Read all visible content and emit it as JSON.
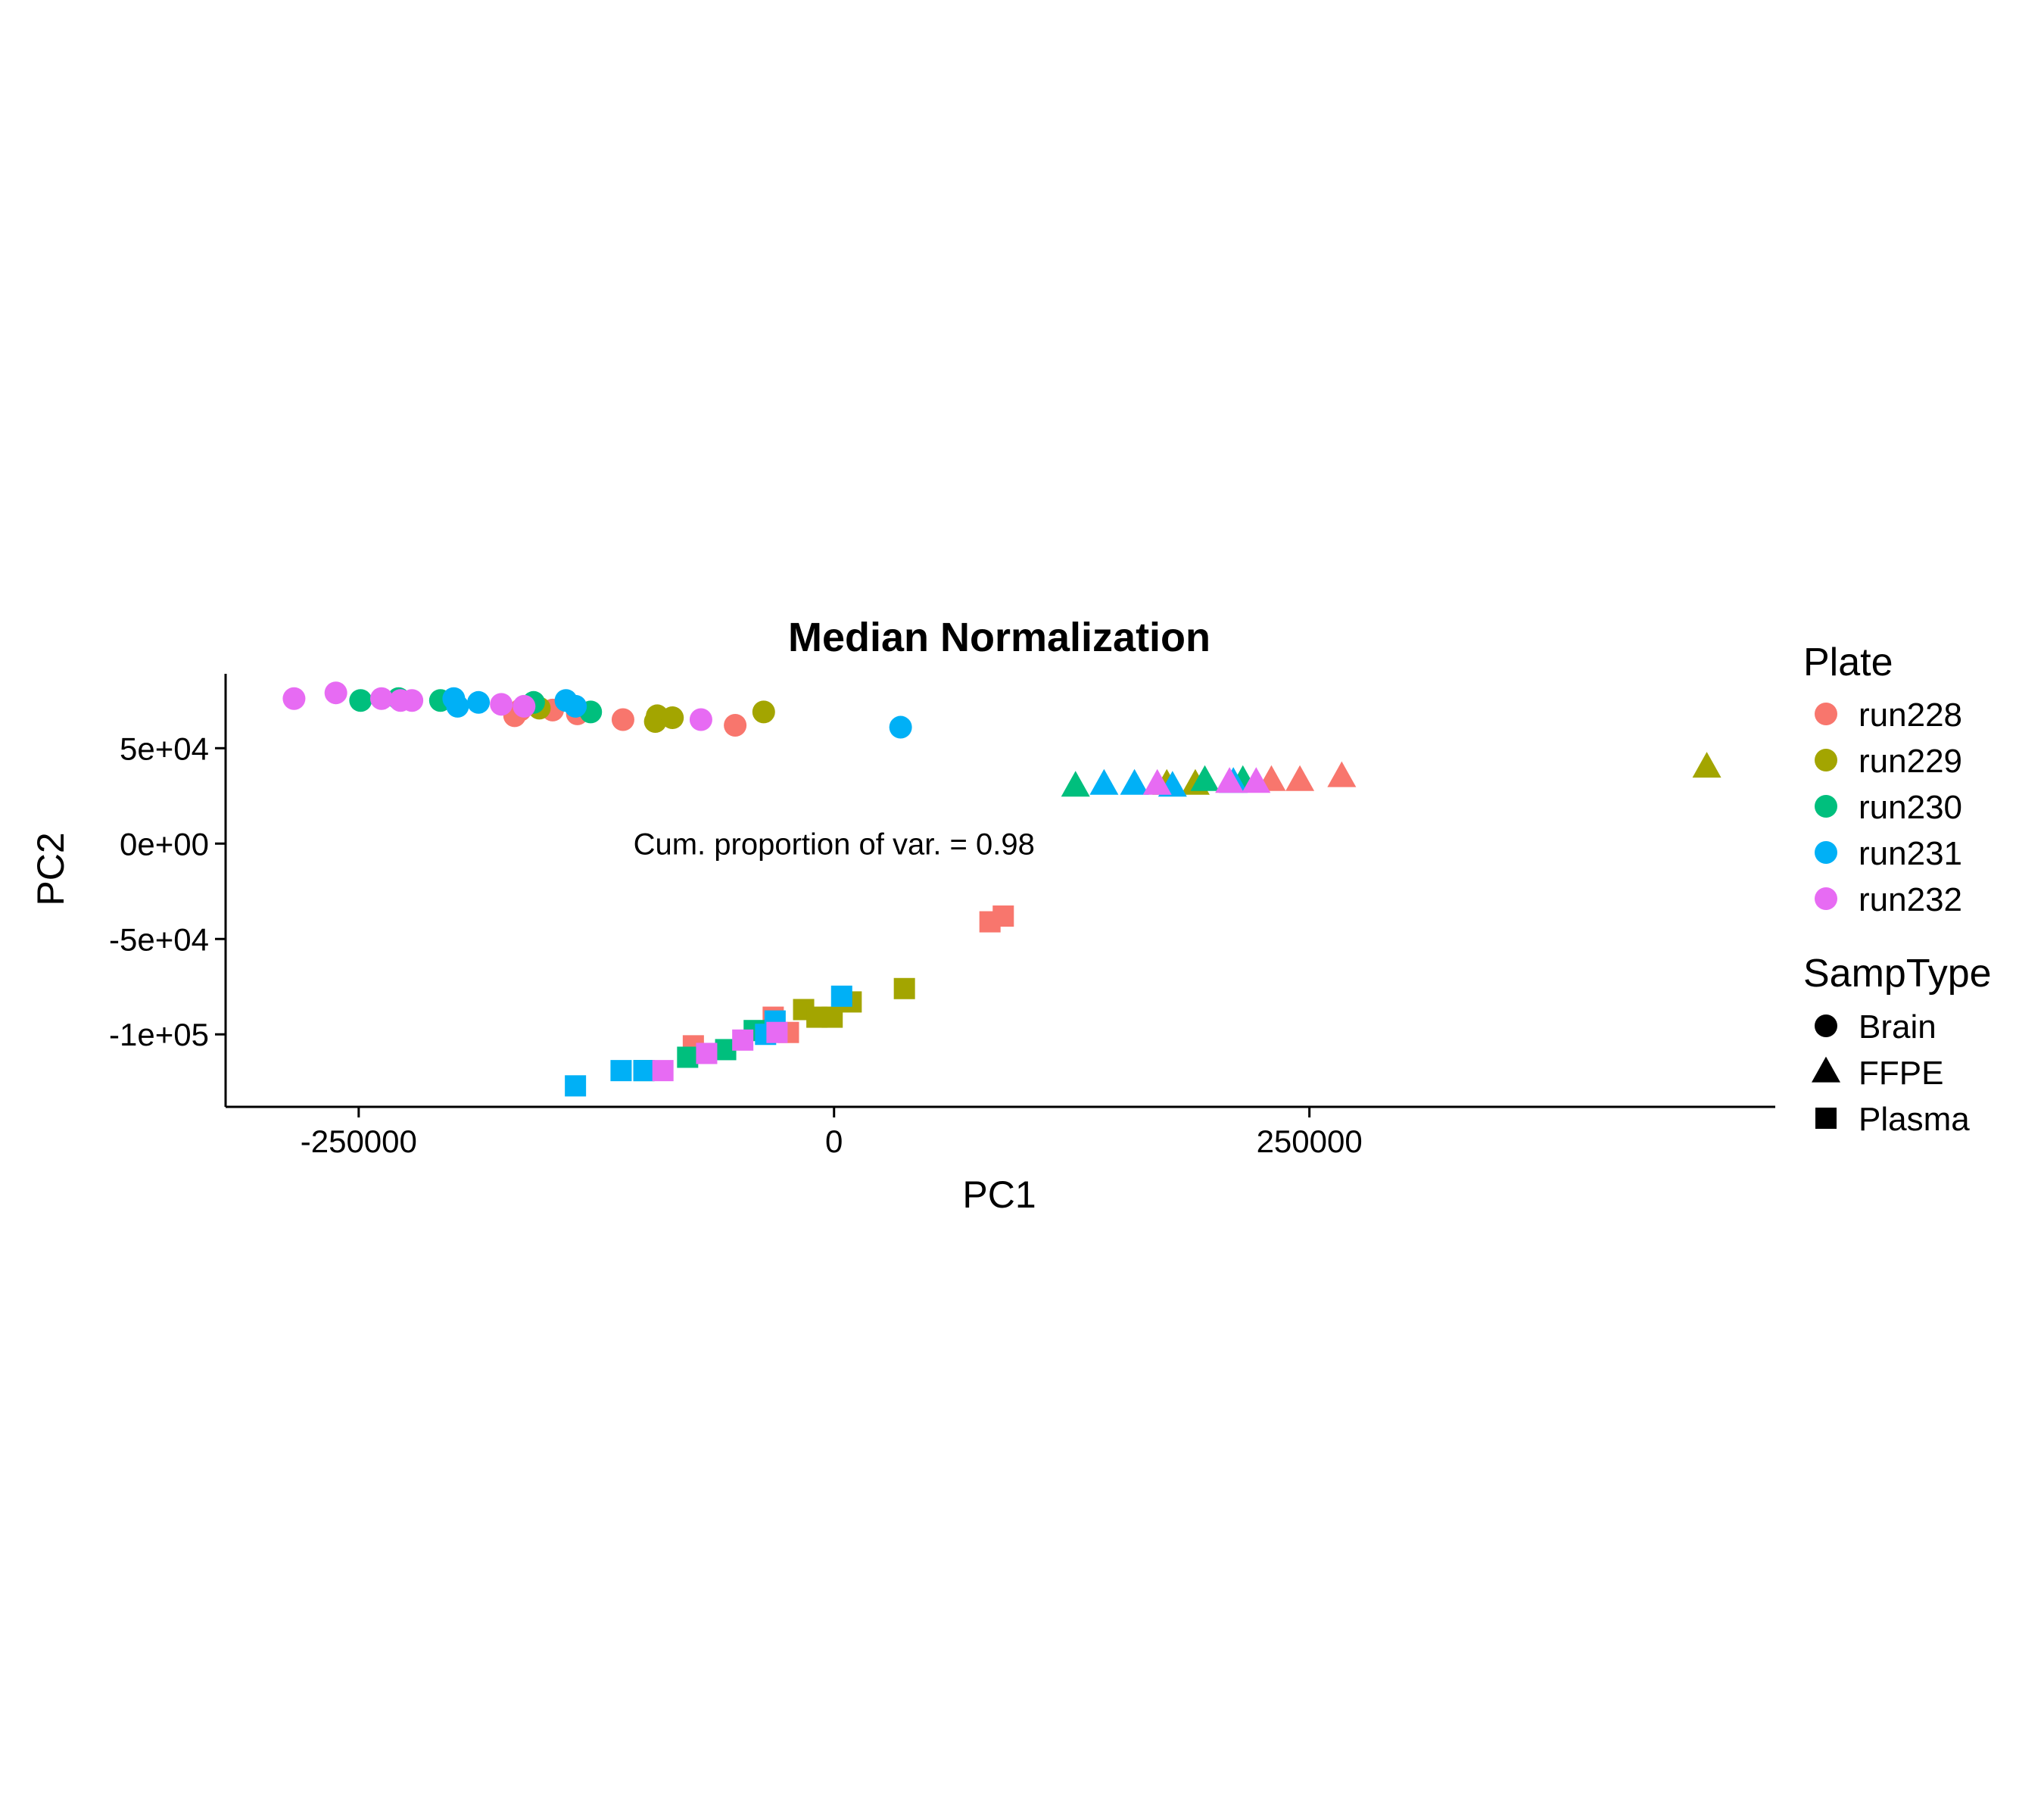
{
  "chart_data": {
    "type": "scatter",
    "title": "Median Normalization",
    "xlabel": "PC1",
    "ylabel": "PC2",
    "xlim": [
      -320000,
      495000
    ],
    "ylim": [
      -138000,
      89000
    ],
    "x_ticks": [
      {
        "value": -250000,
        "label": "-250000"
      },
      {
        "value": 0,
        "label": "0"
      },
      {
        "value": 250000,
        "label": "250000"
      }
    ],
    "y_ticks": [
      {
        "value": 50000,
        "label": "5e+04"
      },
      {
        "value": 0,
        "label": "0e+00"
      },
      {
        "value": -50000,
        "label": "-5e+04"
      },
      {
        "value": -100000,
        "label": "-1e+05"
      }
    ],
    "grid": false,
    "annotation": {
      "text": "Cum. proportion of var. = 0.98",
      "x": 0,
      "y": 0
    },
    "legend": {
      "placement": "right",
      "plate": {
        "title": "Plate",
        "items": [
          {
            "name": "run228",
            "color": "#F8766D"
          },
          {
            "name": "run229",
            "color": "#A3A500"
          },
          {
            "name": "run230",
            "color": "#00BF7D"
          },
          {
            "name": "run231",
            "color": "#00B0F6"
          },
          {
            "name": "run232",
            "color": "#E76BF3"
          }
        ]
      },
      "samptype": {
        "title": "SampType",
        "items": [
          {
            "name": "Brain",
            "shape": "circle"
          },
          {
            "name": "FFPE",
            "shape": "triangle"
          },
          {
            "name": "Plasma",
            "shape": "square"
          }
        ]
      }
    },
    "series": [
      {
        "plate": "run228",
        "points": [
          {
            "x": -168000,
            "y": 67000,
            "type": "Brain"
          },
          {
            "x": -165000,
            "y": 70000,
            "type": "Brain"
          },
          {
            "x": -148000,
            "y": 70000,
            "type": "Brain"
          },
          {
            "x": -135000,
            "y": 68000,
            "type": "Brain"
          },
          {
            "x": -111000,
            "y": 65000,
            "type": "Brain"
          },
          {
            "x": -52000,
            "y": 62000,
            "type": "Brain"
          },
          {
            "x": 230000,
            "y": 33000,
            "type": "FFPE"
          },
          {
            "x": 245000,
            "y": 33000,
            "type": "FFPE"
          },
          {
            "x": 267000,
            "y": 35000,
            "type": "FFPE"
          },
          {
            "x": 82000,
            "y": -41000,
            "type": "Plasma"
          },
          {
            "x": 89000,
            "y": -38000,
            "type": "Plasma"
          },
          {
            "x": -74000,
            "y": -106000,
            "type": "Plasma"
          },
          {
            "x": -32000,
            "y": -91000,
            "type": "Plasma"
          },
          {
            "x": -24000,
            "y": -99000,
            "type": "Plasma"
          }
        ]
      },
      {
        "plate": "run229",
        "points": [
          {
            "x": -155000,
            "y": 71000,
            "type": "Brain"
          },
          {
            "x": -93000,
            "y": 67000,
            "type": "Brain"
          },
          {
            "x": -94000,
            "y": 64000,
            "type": "Brain"
          },
          {
            "x": -85000,
            "y": 66000,
            "type": "Brain"
          },
          {
            "x": -37000,
            "y": 69000,
            "type": "Brain"
          },
          {
            "x": 175000,
            "y": 31000,
            "type": "FFPE"
          },
          {
            "x": 190000,
            "y": 31000,
            "type": "FFPE"
          },
          {
            "x": 459000,
            "y": 40000,
            "type": "FFPE"
          },
          {
            "x": 37000,
            "y": -76000,
            "type": "Plasma"
          },
          {
            "x": 9000,
            "y": -83000,
            "type": "Plasma"
          },
          {
            "x": -16000,
            "y": -87000,
            "type": "Plasma"
          },
          {
            "x": -9000,
            "y": -91000,
            "type": "Plasma"
          },
          {
            "x": -1000,
            "y": -91000,
            "type": "Plasma"
          }
        ]
      },
      {
        "plate": "run230",
        "points": [
          {
            "x": -249000,
            "y": 75000,
            "type": "Brain"
          },
          {
            "x": -229000,
            "y": 76000,
            "type": "Brain"
          },
          {
            "x": -207000,
            "y": 75000,
            "type": "Brain"
          },
          {
            "x": -158000,
            "y": 74000,
            "type": "Brain"
          },
          {
            "x": -128000,
            "y": 69000,
            "type": "Brain"
          },
          {
            "x": 127000,
            "y": 30000,
            "type": "FFPE"
          },
          {
            "x": 195000,
            "y": 33000,
            "type": "FFPE"
          },
          {
            "x": 215000,
            "y": 33000,
            "type": "FFPE"
          },
          {
            "x": -77000,
            "y": -112000,
            "type": "Plasma"
          },
          {
            "x": -57000,
            "y": -108000,
            "type": "Plasma"
          },
          {
            "x": -42000,
            "y": -98000,
            "type": "Plasma"
          },
          {
            "x": -100000,
            "y": -119000,
            "type": "Plasma"
          }
        ]
      },
      {
        "plate": "run231",
        "points": [
          {
            "x": -200000,
            "y": 76000,
            "type": "Brain"
          },
          {
            "x": -198000,
            "y": 72000,
            "type": "Brain"
          },
          {
            "x": -187000,
            "y": 74000,
            "type": "Brain"
          },
          {
            "x": -141000,
            "y": 75000,
            "type": "Brain"
          },
          {
            "x": -136000,
            "y": 72000,
            "type": "Brain"
          },
          {
            "x": 35000,
            "y": 61000,
            "type": "Brain"
          },
          {
            "x": 142000,
            "y": 31000,
            "type": "FFPE"
          },
          {
            "x": 158000,
            "y": 31000,
            "type": "FFPE"
          },
          {
            "x": 178000,
            "y": 30000,
            "type": "FFPE"
          },
          {
            "x": 210000,
            "y": 32000,
            "type": "FFPE"
          },
          {
            "x": -136000,
            "y": -127000,
            "type": "Plasma"
          },
          {
            "x": -112000,
            "y": -119000,
            "type": "Plasma"
          },
          {
            "x": -100000,
            "y": -119000,
            "type": "Plasma"
          },
          {
            "x": -36000,
            "y": -100000,
            "type": "Plasma"
          },
          {
            "x": -31000,
            "y": -93000,
            "type": "Plasma"
          },
          {
            "x": 4000,
            "y": -80000,
            "type": "Plasma"
          }
        ]
      },
      {
        "plate": "run232",
        "points": [
          {
            "x": -284000,
            "y": 76000,
            "type": "Brain"
          },
          {
            "x": -262000,
            "y": 79000,
            "type": "Brain"
          },
          {
            "x": -238000,
            "y": 76000,
            "type": "Brain"
          },
          {
            "x": -228000,
            "y": 75000,
            "type": "Brain"
          },
          {
            "x": -222000,
            "y": 75000,
            "type": "Brain"
          },
          {
            "x": -175000,
            "y": 73000,
            "type": "Brain"
          },
          {
            "x": -163000,
            "y": 72000,
            "type": "Brain"
          },
          {
            "x": -70000,
            "y": 65000,
            "type": "Brain"
          },
          {
            "x": 170000,
            "y": 31000,
            "type": "FFPE"
          },
          {
            "x": 208000,
            "y": 32000,
            "type": "FFPE"
          },
          {
            "x": 222000,
            "y": 32000,
            "type": "FFPE"
          },
          {
            "x": -90000,
            "y": -119000,
            "type": "Plasma"
          },
          {
            "x": -67000,
            "y": -110000,
            "type": "Plasma"
          },
          {
            "x": -48000,
            "y": -103000,
            "type": "Plasma"
          },
          {
            "x": -30000,
            "y": -99000,
            "type": "Plasma"
          }
        ]
      }
    ]
  }
}
